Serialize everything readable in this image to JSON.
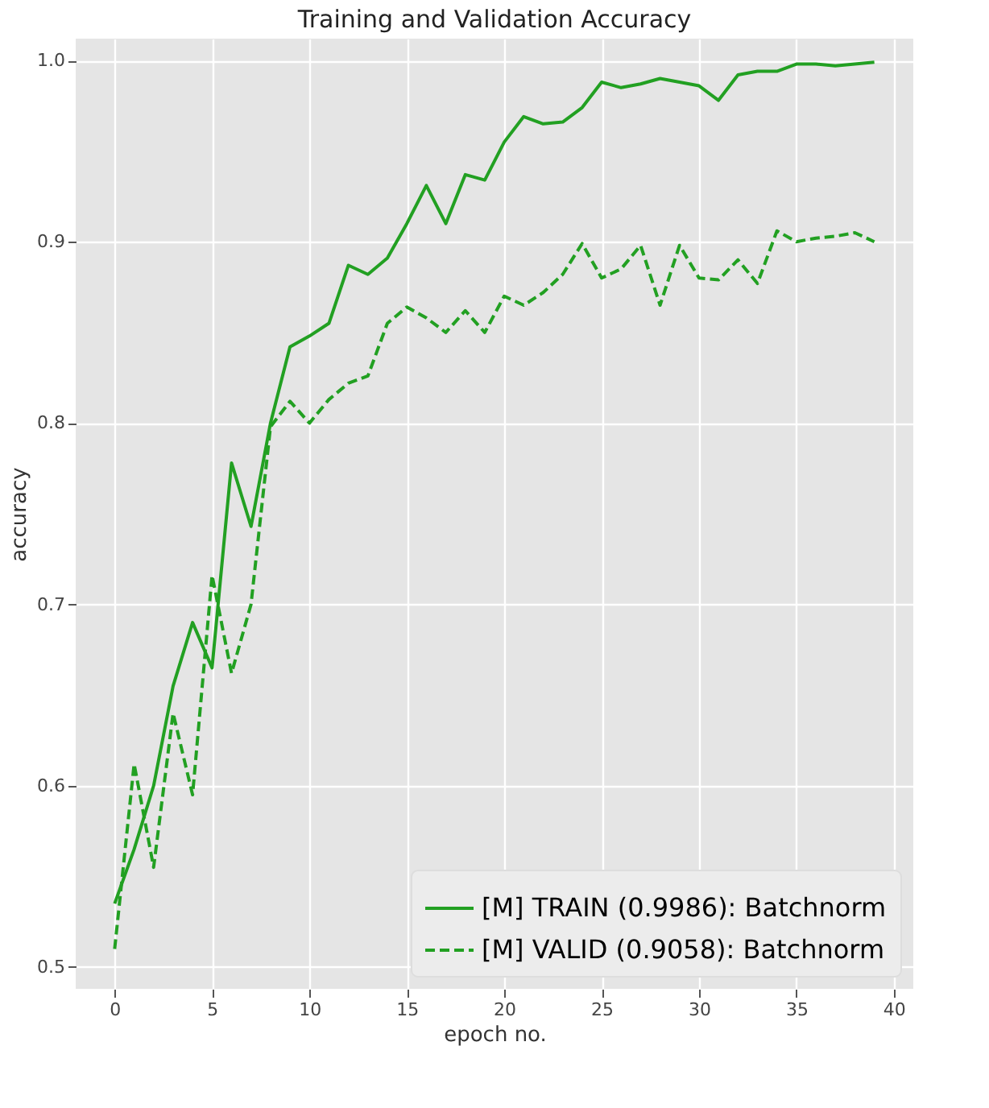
{
  "chart_data": {
    "type": "line",
    "title": "Training and Validation Accuracy",
    "xlabel": "epoch no.",
    "ylabel": "accuracy",
    "x": [
      0,
      1,
      2,
      3,
      4,
      5,
      6,
      7,
      8,
      9,
      10,
      11,
      12,
      13,
      14,
      15,
      16,
      17,
      18,
      19,
      20,
      21,
      22,
      23,
      24,
      25,
      26,
      27,
      28,
      29,
      30,
      31,
      32,
      33,
      34,
      35,
      36,
      37,
      38,
      39
    ],
    "series": [
      {
        "name": "[M] TRAIN (0.9986): Batchnorm",
        "color": "#22a022",
        "line_style": "solid",
        "values": [
          0.535,
          0.565,
          0.6,
          0.655,
          0.69,
          0.665,
          0.778,
          0.743,
          0.8,
          0.842,
          0.848,
          0.855,
          0.887,
          0.882,
          0.891,
          0.91,
          0.931,
          0.91,
          0.937,
          0.934,
          0.955,
          0.969,
          0.965,
          0.966,
          0.974,
          0.988,
          0.985,
          0.987,
          0.99,
          0.988,
          0.986,
          0.978,
          0.992,
          0.994,
          0.994,
          0.998,
          0.998,
          0.997,
          0.998,
          0.999
        ]
      },
      {
        "name": "[M] VALID (0.9058): Batchnorm",
        "color": "#22a022",
        "line_style": "dashed",
        "values": [
          0.51,
          0.612,
          0.555,
          0.64,
          0.595,
          0.716,
          0.662,
          0.7,
          0.798,
          0.812,
          0.8,
          0.813,
          0.822,
          0.826,
          0.855,
          0.864,
          0.858,
          0.85,
          0.862,
          0.85,
          0.87,
          0.865,
          0.872,
          0.882,
          0.899,
          0.88,
          0.885,
          0.898,
          0.865,
          0.898,
          0.88,
          0.879,
          0.89,
          0.877,
          0.906,
          0.9,
          0.902,
          0.903,
          0.905,
          0.9
        ]
      }
    ],
    "xlim": [
      -2,
      41
    ],
    "ylim": [
      0.488,
      1.012
    ],
    "xticks": [
      0,
      5,
      10,
      15,
      20,
      25,
      30,
      35,
      40
    ],
    "yticks": [
      {
        "value": 0.5,
        "label": "0.5"
      },
      {
        "value": 0.6,
        "label": "0.6"
      },
      {
        "value": 0.7,
        "label": "0.7"
      },
      {
        "value": 0.8,
        "label": "0.8"
      },
      {
        "value": 0.9,
        "label": "0.9"
      },
      {
        "value": 1.0,
        "label": "1.0"
      }
    ],
    "grid": true,
    "legend": "bottom right",
    "marker": "none"
  }
}
